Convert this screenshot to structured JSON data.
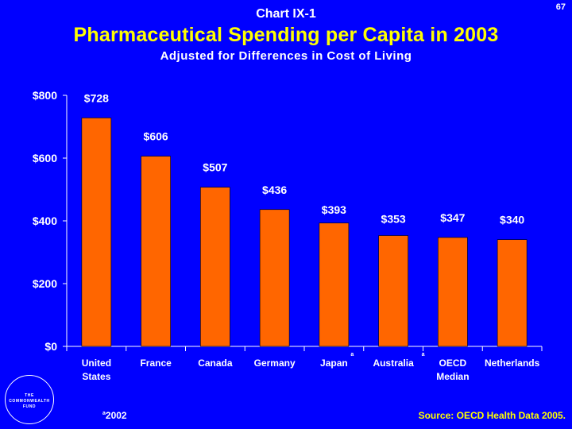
{
  "header": {
    "chart_label": "Chart IX-1",
    "page_number": "67",
    "title": "Pharmaceutical Spending per Capita in 2003",
    "subtitle": "Adjusted for Differences in Cost of Living"
  },
  "footer": {
    "footnote_marker": "a",
    "footnote_text": "2002",
    "source": "Source: OECD Health Data 2005.",
    "logo_lines": [
      "THE",
      "COMMONWEALTH",
      "FUND"
    ]
  },
  "colors": {
    "background": "#0000FF",
    "bar": "#FF6600",
    "title": "#FFFF00",
    "text": "#FFFFFF"
  },
  "chart_data": {
    "type": "bar",
    "title": "Pharmaceutical Spending per Capita in 2003",
    "xlabel": "",
    "ylabel": "",
    "ylim": [
      0,
      800
    ],
    "yticks": [
      "$0",
      "$200",
      "$400",
      "$600",
      "$800"
    ],
    "ytick_values": [
      0,
      200,
      400,
      600,
      800
    ],
    "categories": [
      {
        "lines": [
          "United",
          "States"
        ],
        "note": ""
      },
      {
        "lines": [
          "France"
        ],
        "note": ""
      },
      {
        "lines": [
          "Canada"
        ],
        "note": ""
      },
      {
        "lines": [
          "Germany"
        ],
        "note": ""
      },
      {
        "lines": [
          "Japan"
        ],
        "note": "a"
      },
      {
        "lines": [
          "Australia"
        ],
        "note": "a"
      },
      {
        "lines": [
          "OECD",
          "Median"
        ],
        "note": ""
      },
      {
        "lines": [
          "Netherlands"
        ],
        "note": ""
      }
    ],
    "values": [
      728,
      606,
      507,
      436,
      393,
      353,
      347,
      340
    ],
    "value_labels": [
      "$728",
      "$606",
      "$507",
      "$436",
      "$393",
      "$353",
      "$347",
      "$340"
    ]
  }
}
